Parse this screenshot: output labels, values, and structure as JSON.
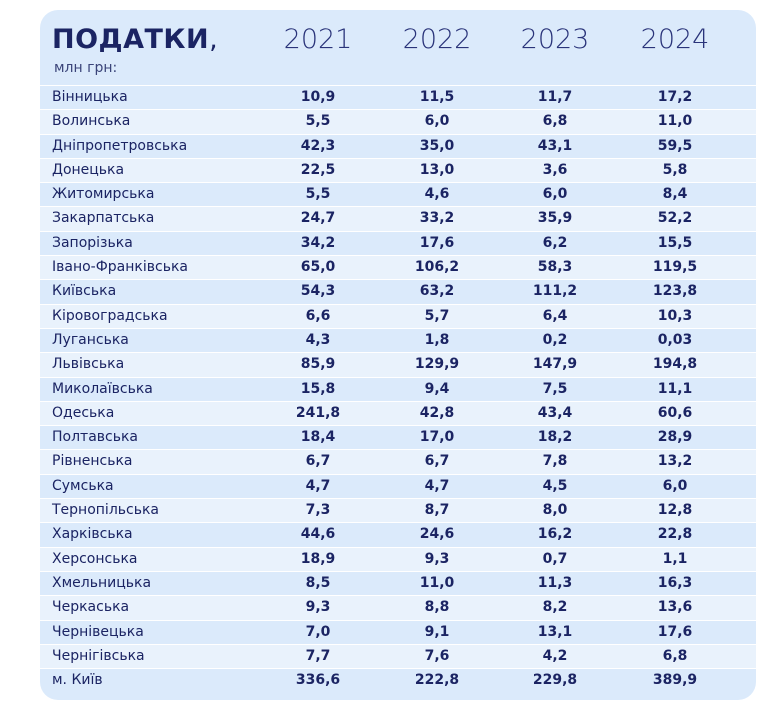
{
  "header": {
    "title": "ПОДАТКИ",
    "title_punct": ",",
    "subtitle": "млн грн:"
  },
  "table": {
    "columns": [
      "2021",
      "2022",
      "2023",
      "2024"
    ],
    "rows": [
      {
        "name": "Вінницька",
        "values": [
          "10,9",
          "11,5",
          "11,7",
          "17,2"
        ]
      },
      {
        "name": "Волинська",
        "values": [
          "5,5",
          "6,0",
          "6,8",
          "11,0"
        ]
      },
      {
        "name": "Дніпропетровська",
        "values": [
          "42,3",
          "35,0",
          "43,1",
          "59,5"
        ]
      },
      {
        "name": "Донецька",
        "values": [
          "22,5",
          "13,0",
          "3,6",
          "5,8"
        ]
      },
      {
        "name": "Житомирська",
        "values": [
          "5,5",
          "4,6",
          "6,0",
          "8,4"
        ]
      },
      {
        "name": "Закарпатська",
        "values": [
          "24,7",
          "33,2",
          "35,9",
          "52,2"
        ]
      },
      {
        "name": "Запорізька",
        "values": [
          "34,2",
          "17,6",
          "6,2",
          "15,5"
        ]
      },
      {
        "name": "Івано-Франківська",
        "values": [
          "65,0",
          "106,2",
          "58,3",
          "119,5"
        ]
      },
      {
        "name": "Київська",
        "values": [
          "54,3",
          "63,2",
          "111,2",
          "123,8"
        ]
      },
      {
        "name": "Кіровоградська",
        "values": [
          "6,6",
          "5,7",
          "6,4",
          "10,3"
        ]
      },
      {
        "name": "Луганська",
        "values": [
          "4,3",
          "1,8",
          "0,2",
          "0,03"
        ]
      },
      {
        "name": "Львівська",
        "values": [
          "85,9",
          "129,9",
          "147,9",
          "194,8"
        ]
      },
      {
        "name": "Миколаївська",
        "values": [
          "15,8",
          "9,4",
          "7,5",
          "11,1"
        ]
      },
      {
        "name": "Одеська",
        "values": [
          "241,8",
          "42,8",
          "43,4",
          "60,6"
        ]
      },
      {
        "name": "Полтавська",
        "values": [
          "18,4",
          "17,0",
          "18,2",
          "28,9"
        ]
      },
      {
        "name": "Рівненська",
        "values": [
          "6,7",
          "6,7",
          "7,8",
          "13,2"
        ]
      },
      {
        "name": "Сумська",
        "values": [
          "4,7",
          "4,7",
          "4,5",
          "6,0"
        ]
      },
      {
        "name": "Тернопільська",
        "values": [
          "7,3",
          "8,7",
          "8,0",
          "12,8"
        ]
      },
      {
        "name": "Харківська",
        "values": [
          "44,6",
          "24,6",
          "16,2",
          "22,8"
        ]
      },
      {
        "name": "Херсонська",
        "values": [
          "18,9",
          "9,3",
          "0,7",
          "1,1"
        ]
      },
      {
        "name": "Хмельницька",
        "values": [
          "8,5",
          "11,0",
          "11,3",
          "16,3"
        ]
      },
      {
        "name": "Черкаська",
        "values": [
          "9,3",
          "8,8",
          "8,2",
          "13,6"
        ]
      },
      {
        "name": "Чернівецька",
        "values": [
          "7,0",
          "9,1",
          "13,1",
          "17,6"
        ]
      },
      {
        "name": "Чернігівська",
        "values": [
          "7,7",
          "7,6",
          "4,2",
          "6,8"
        ]
      },
      {
        "name": "м. Київ",
        "values": [
          "336,6",
          "222,8",
          "229,8",
          "389,9"
        ]
      }
    ]
  }
}
